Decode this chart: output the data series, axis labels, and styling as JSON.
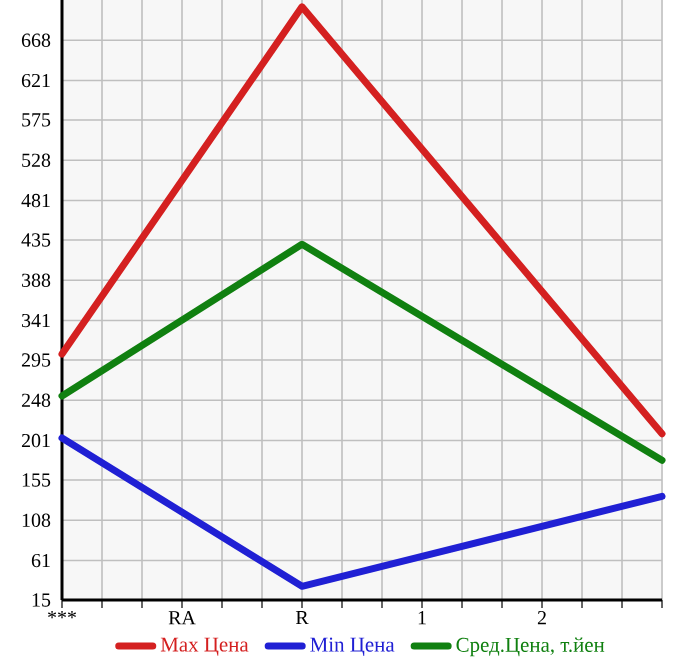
{
  "chart_data": {
    "type": "line",
    "categories": [
      "***",
      "RA",
      "R",
      "1",
      "2",
      null
    ],
    "series": [
      {
        "name": "Max Цена",
        "color": "#d42020",
        "values": [
          302,
          null,
          707,
          null,
          null,
          209
        ]
      },
      {
        "name": "Min Цена",
        "color": "#2020d4",
        "values": [
          204,
          null,
          31,
          null,
          null,
          136
        ]
      },
      {
        "name": "Сред.Цена, т.йен",
        "color": "#108010",
        "values": [
          253,
          null,
          430,
          null,
          null,
          178
        ]
      }
    ],
    "ylim": [
      15,
      715
    ],
    "yticks": [
      15,
      61,
      108,
      155,
      201,
      248,
      295,
      341,
      388,
      435,
      481,
      528,
      575,
      621,
      668
    ],
    "grid": true,
    "legend": "bottom",
    "marker": "none",
    "line_style": "solid"
  }
}
